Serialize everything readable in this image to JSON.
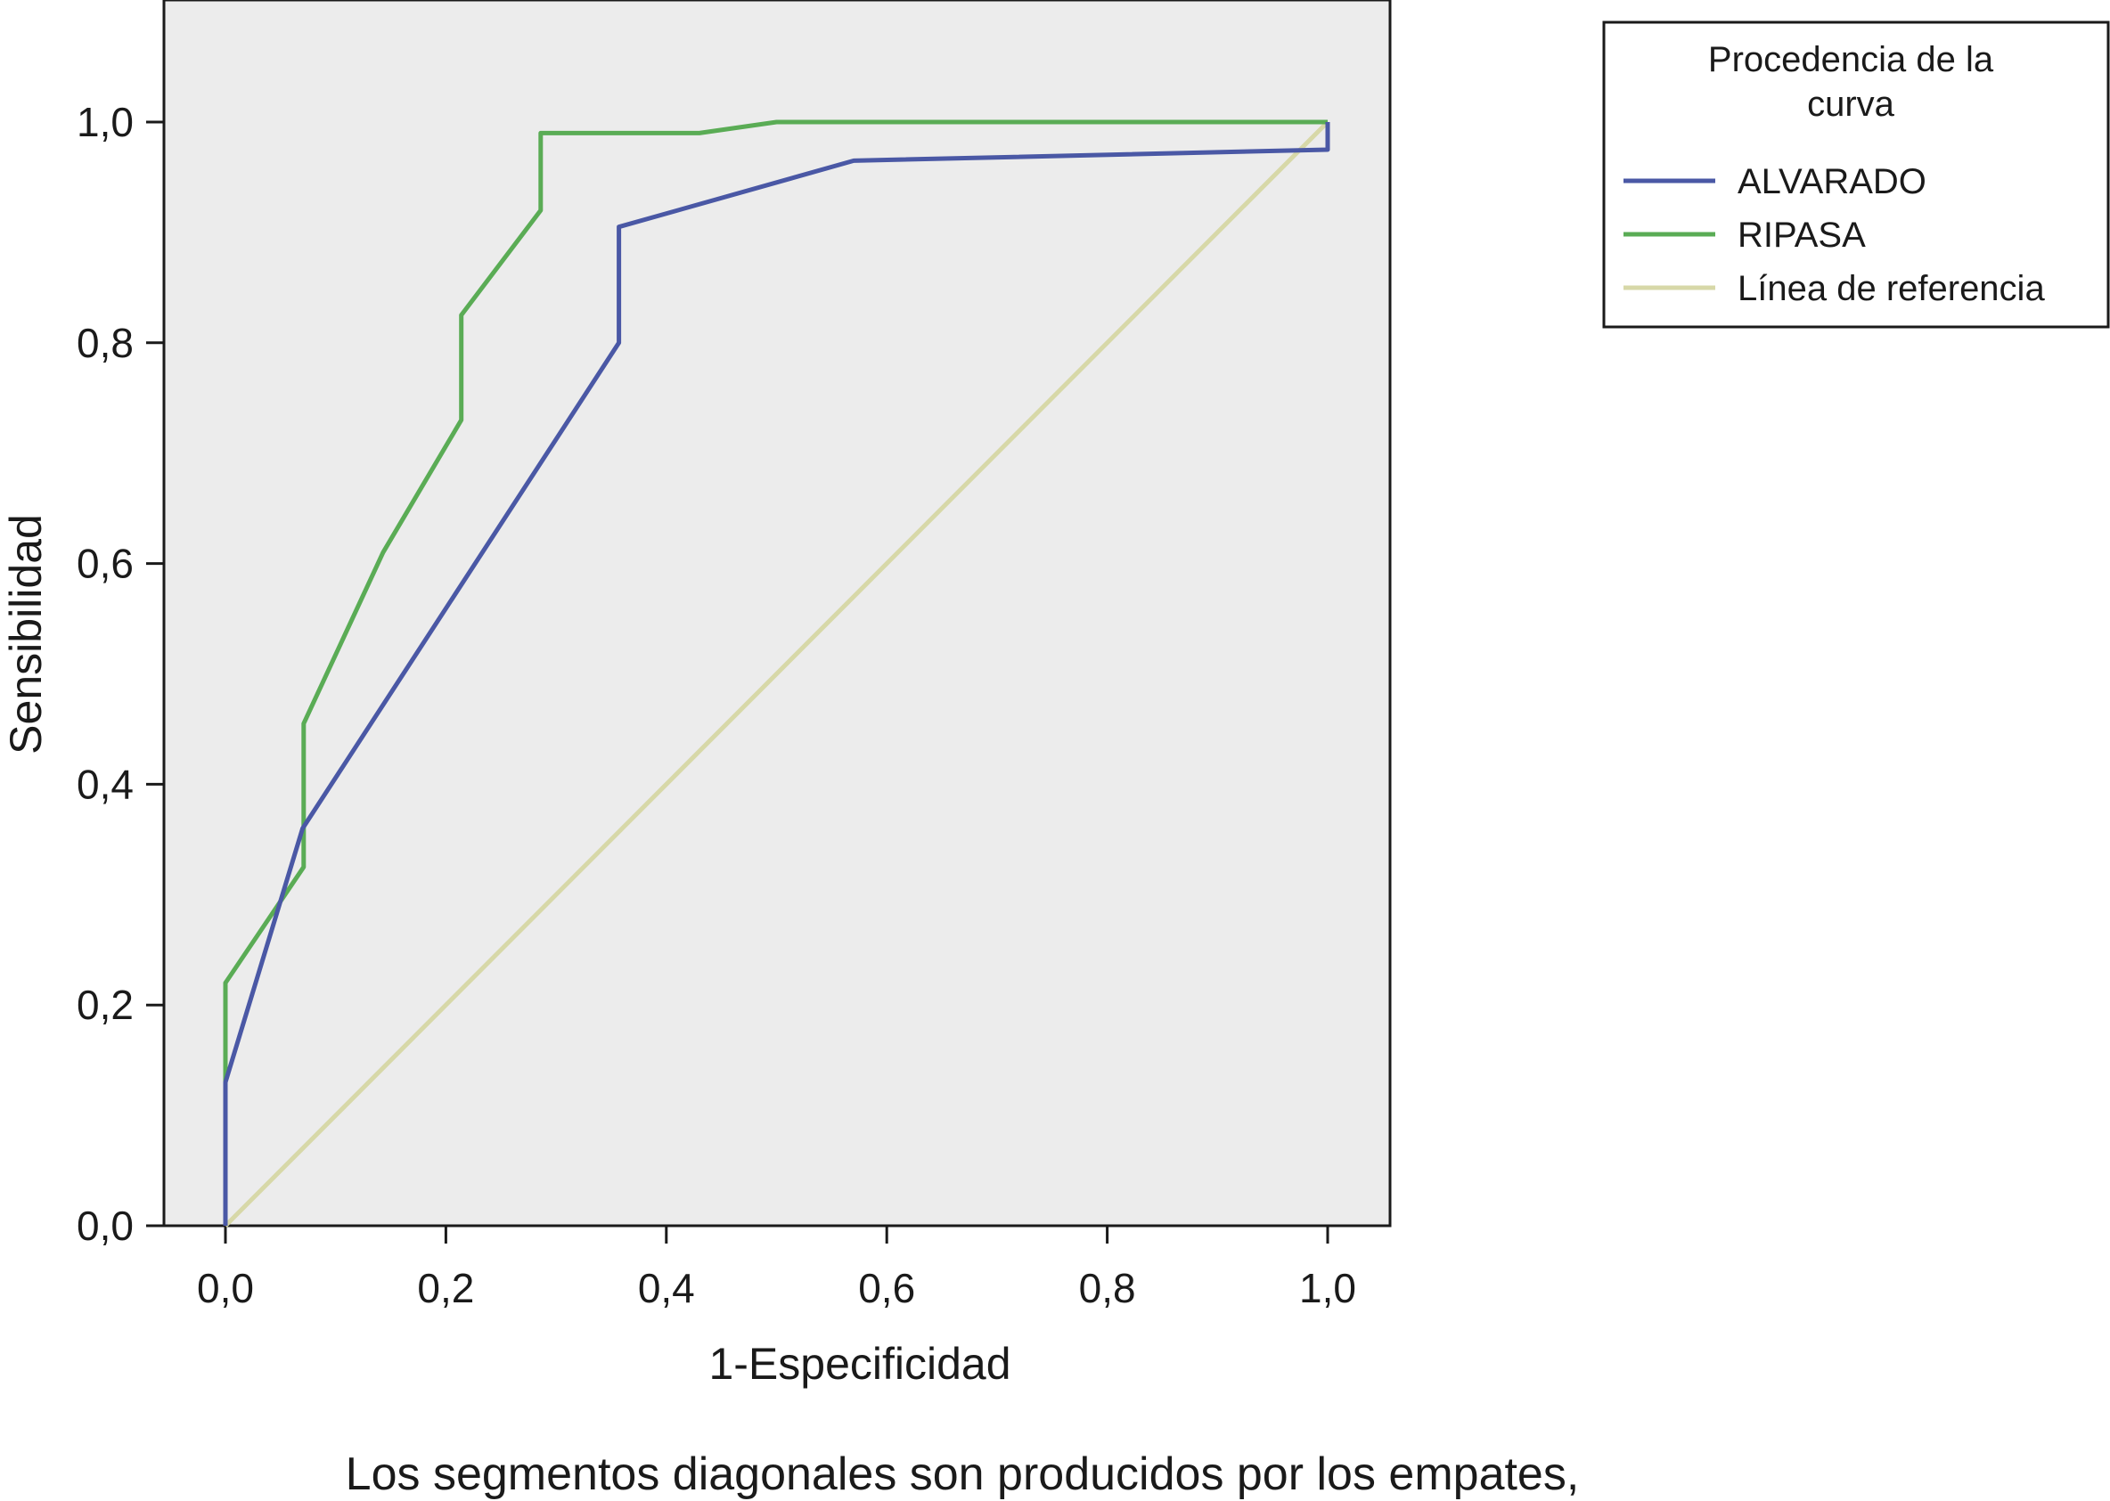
{
  "chart_data": {
    "type": "line",
    "xlabel": "1-Especificidad",
    "ylabel": "Sensibilidad",
    "xlim": [
      0,
      1.0
    ],
    "ylim": [
      0,
      1.0
    ],
    "x_ticks": [
      "0,0",
      "0,2",
      "0,4",
      "0,6",
      "0,8",
      "1,0"
    ],
    "y_ticks": [
      "0,0",
      "0,2",
      "0,4",
      "0,6",
      "0,8",
      "1,0"
    ],
    "grid": false,
    "legend": {
      "title_line1": "Procedencia de la",
      "title_line2": "curva",
      "placement": "top-right outside"
    },
    "series": [
      {
        "name": "ALVARADO",
        "color": "#4a58a5",
        "points": [
          [
            0,
            0
          ],
          [
            0,
            0.13
          ],
          [
            0.07,
            0.36
          ],
          [
            0.357,
            0.8
          ],
          [
            0.357,
            0.905
          ],
          [
            0.57,
            0.965
          ],
          [
            1.0,
            0.975
          ],
          [
            1.0,
            1.0
          ]
        ]
      },
      {
        "name": "RIPASA",
        "color": "#5aac55",
        "points": [
          [
            0,
            0
          ],
          [
            0,
            0.22
          ],
          [
            0.071,
            0.325
          ],
          [
            0.071,
            0.455
          ],
          [
            0.143,
            0.61
          ],
          [
            0.214,
            0.73
          ],
          [
            0.214,
            0.825
          ],
          [
            0.286,
            0.92
          ],
          [
            0.286,
            0.99
          ],
          [
            0.43,
            0.99
          ],
          [
            0.5,
            1.0
          ],
          [
            1.0,
            1.0
          ]
        ]
      },
      {
        "name": "Línea de referencia",
        "color": "#d7d8a8",
        "points": [
          [
            0,
            0
          ],
          [
            1.0,
            1.0
          ]
        ]
      }
    ],
    "footnote": "Los segmentos diagonales son producidos por los empates,"
  }
}
